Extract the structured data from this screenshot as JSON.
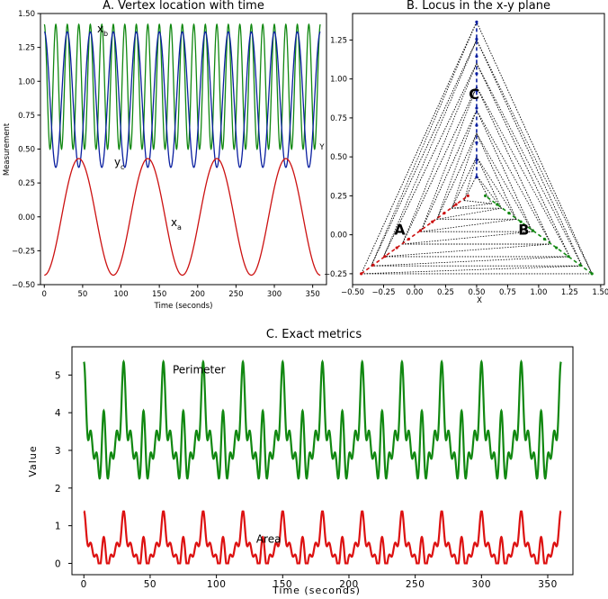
{
  "chart_data": [
    {
      "panel": "A",
      "type": "line",
      "title": "A. Vertex location with time",
      "xlabel": "Time (seconds)",
      "ylabel": "Measurement",
      "xlim": [
        -5,
        368
      ],
      "ylim": [
        -0.5,
        1.5
      ],
      "xticks": [
        0,
        50,
        100,
        150,
        200,
        250,
        300,
        350
      ],
      "yticks": [
        -0.5,
        -0.25,
        0.0,
        0.25,
        0.5,
        0.75,
        1.0,
        1.25,
        1.5
      ],
      "ytick_labels": [
        "−0.50",
        "−0.25",
        "0.00",
        "0.25",
        "0.50",
        "0.75",
        "1.00",
        "1.25",
        "1.50"
      ],
      "series": [
        {
          "name": "xb",
          "label_main": "x",
          "label_sub": "b",
          "color": "#118811",
          "function": "cos",
          "mean": 0.96,
          "amplitude": 0.46,
          "period_s": 15,
          "phase_s": 0
        },
        {
          "name": "yc",
          "label_main": "y",
          "label_sub": "c",
          "color": "#0a1fa0",
          "function": "cos",
          "mean": 0.865,
          "amplitude": 0.5,
          "period_s": 30,
          "phase_s": 0
        },
        {
          "name": "xa",
          "label_main": "x",
          "label_sub": "a",
          "color": "#cc1111",
          "function": "cos",
          "mean": 0.0,
          "amplitude": 0.43,
          "period_s": 90,
          "phase_s": 45
        }
      ],
      "x_range": [
        0,
        360
      ],
      "grid": false
    },
    {
      "panel": "B",
      "type": "scatter",
      "title": "B. Locus in the x-y plane",
      "xlabel": "X",
      "ylabel": "Y",
      "xlim": [
        -0.5,
        1.53
      ],
      "ylim": [
        -0.32,
        1.42
      ],
      "xticks": [
        -0.5,
        -0.25,
        0.0,
        0.25,
        0.5,
        0.75,
        1.0,
        1.25,
        1.5
      ],
      "xtick_labels": [
        "−0.50",
        "−0.25",
        "0.00",
        "0.25",
        "0.50",
        "0.75",
        "1.00",
        "1.25",
        "1.50"
      ],
      "yticks": [
        -0.25,
        0.0,
        0.25,
        0.5,
        0.75,
        1.0,
        1.25
      ],
      "ytick_labels": [
        "−0.25",
        "0.00",
        "0.25",
        "0.50",
        "0.75",
        "1.00",
        "1.25"
      ],
      "vertex_labels": [
        {
          "text": "A",
          "x": -0.12,
          "y": 0.0
        },
        {
          "text": "B",
          "x": 0.88,
          "y": 0.0
        },
        {
          "text": "C",
          "x": 0.48,
          "y": 0.87
        }
      ],
      "triangles": [
        {
          "a": [
            -0.43,
            -0.25
          ],
          "b": [
            1.43,
            -0.25
          ],
          "c": [
            0.5,
            1.366
          ]
        },
        {
          "a": [
            -0.35,
            -0.2
          ],
          "b": [
            1.35,
            -0.2
          ],
          "c": [
            0.5,
            1.25
          ]
        },
        {
          "a": [
            -0.25,
            -0.14
          ],
          "b": [
            1.25,
            -0.14
          ],
          "c": [
            0.5,
            1.1
          ]
        },
        {
          "a": [
            -0.1,
            -0.06
          ],
          "b": [
            1.1,
            -0.06
          ],
          "c": [
            0.5,
            0.95
          ]
        },
        {
          "a": [
            0.05,
            0.02
          ],
          "b": [
            0.95,
            0.02
          ],
          "c": [
            0.5,
            0.8
          ]
        },
        {
          "a": [
            0.18,
            0.1
          ],
          "b": [
            0.82,
            0.1
          ],
          "c": [
            0.5,
            0.65
          ]
        },
        {
          "a": [
            0.3,
            0.17
          ],
          "b": [
            0.7,
            0.17
          ],
          "c": [
            0.5,
            0.5
          ]
        },
        {
          "a": [
            0.4,
            0.22
          ],
          "b": [
            0.62,
            0.2
          ],
          "c": [
            0.5,
            0.38
          ]
        }
      ],
      "locus": {
        "a": {
          "color": "#cc1111",
          "from": [
            -0.43,
            -0.25
          ],
          "to": [
            0.43,
            0.25
          ]
        },
        "b": {
          "color": "#118811",
          "from": [
            1.43,
            -0.25
          ],
          "to": [
            0.57,
            0.25
          ]
        },
        "c": {
          "color": "#0a1fa0",
          "from": [
            0.5,
            1.366
          ],
          "to": [
            0.5,
            0.37
          ]
        }
      },
      "grid": false
    },
    {
      "panel": "C",
      "type": "line",
      "title": "C. Exact metrics",
      "xlabel": "Time (seconds)",
      "ylabel": "Value",
      "xlim": [
        -9,
        369
      ],
      "ylim": [
        -0.3,
        5.75
      ],
      "xticks": [
        0,
        50,
        100,
        150,
        200,
        250,
        300,
        350
      ],
      "yticks": [
        0,
        1,
        2,
        3,
        4,
        5
      ],
      "x_range": [
        0,
        360
      ],
      "series": [
        {
          "name": "Perimeter",
          "color": "#118811",
          "mean": 3.3,
          "amplitude": 2.1,
          "period_s": 30
        },
        {
          "name": "Area",
          "color": "#dd1111",
          "mean": 0.42,
          "amplitude": 0.98,
          "period_s": 30
        }
      ],
      "annotations": [
        {
          "text": "Perimeter",
          "x": 67,
          "y": 5.05
        },
        {
          "text": "Area",
          "x": 130,
          "y": 0.55
        }
      ],
      "grid": false
    }
  ]
}
